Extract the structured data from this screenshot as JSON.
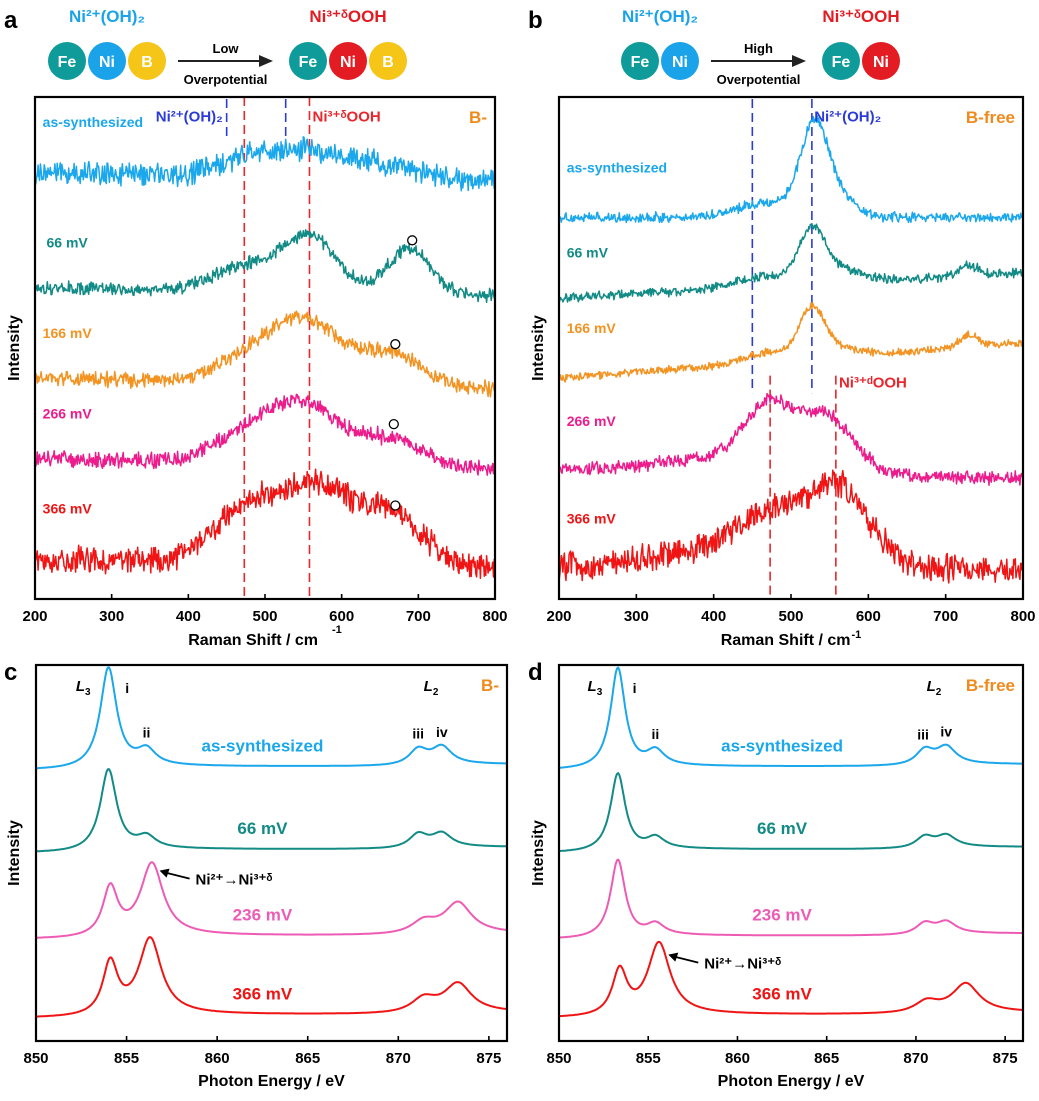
{
  "figure": {
    "panels": [
      "a",
      "b",
      "c",
      "d"
    ]
  },
  "colors": {
    "fe": "#0F9B9A",
    "ni2": "#1AA3E8",
    "ni3": "#E31B23",
    "b": "#F5C518",
    "as_synthesized": "#1AA7EC",
    "mv66": "#128A85",
    "mv166": "#F39322",
    "mv266": "#EC1C8C",
    "mv236": "#EE5BB5",
    "mv366": "#F01414",
    "blue_dash": "#2B3BD8",
    "red_dash": "#E8262B",
    "orange_label": "#F08A1C",
    "axis": "#000000"
  },
  "schemes": [
    {
      "panel": "a",
      "left_label": "Ni²⁺(OH)₂",
      "right_label": "Ni³⁺ᵟOOH",
      "arrow_top": "Low",
      "arrow_bottom": "Overpotential",
      "left_atoms": [
        "Fe",
        "Ni",
        "B"
      ],
      "right_atoms": [
        "Fe",
        "Ni",
        "B"
      ],
      "left_atom_colors": [
        "fe",
        "ni2",
        "b"
      ],
      "right_atom_colors": [
        "fe",
        "ni3",
        "b"
      ]
    },
    {
      "panel": "b",
      "left_label": "Ni²⁺(OH)₂",
      "right_label": "Ni³⁺ᵟOOH",
      "arrow_top": "High",
      "arrow_bottom": "Overpotential",
      "left_atoms": [
        "Fe",
        "Ni"
      ],
      "right_atoms": [
        "Fe",
        "Ni"
      ],
      "left_atom_colors": [
        "fe",
        "ni2"
      ],
      "right_atom_colors": [
        "fe",
        "ni3"
      ]
    }
  ],
  "chart_data": [
    {
      "panel": "a",
      "type": "line",
      "title": "",
      "sample_label": "B-",
      "xlabel": "Raman Shift / cm",
      "xlabel_sup": "-1",
      "ylabel": "Intensity",
      "xlim": [
        200,
        800
      ],
      "xticks": [
        200,
        300,
        400,
        500,
        600,
        700,
        800
      ],
      "yticks": [],
      "grid": false,
      "legend": "inline labels at left of each trace",
      "reference_lines": [
        {
          "x": 450,
          "color": "blue_dash",
          "span": "top",
          "label": ""
        },
        {
          "x": 527,
          "color": "blue_dash",
          "span": "top",
          "label": ""
        },
        {
          "x": 473,
          "color": "red_dash",
          "span": "full",
          "label": ""
        },
        {
          "x": 558,
          "color": "red_dash",
          "span": "full",
          "label": ""
        }
      ],
      "annotations": [
        {
          "text": "Ni²⁺(OH)₂",
          "color": "blue_dash",
          "x": 445,
          "anchor": "end",
          "y_level": 0.955
        },
        {
          "text": "Ni³⁺ᵟOOH",
          "color": "red_dash",
          "x": 562,
          "anchor": "start",
          "y_level": 0.955
        }
      ],
      "markers": [
        {
          "series": "66 mV",
          "x": 692,
          "symbol": "open-circle"
        },
        {
          "series": "166 mV",
          "x": 670,
          "symbol": "open-circle"
        },
        {
          "series": "266 mV",
          "x": 668,
          "symbol": "open-circle"
        },
        {
          "series": "366 mV",
          "x": 670,
          "symbol": "open-circle"
        }
      ],
      "series": [
        {
          "name": "as-synthesized",
          "color": "as_synthesized",
          "baseline": 0.85,
          "noise": 0.018,
          "slope": -0.02,
          "peaks": [
            [
              480,
              40,
              0.035
            ],
            [
              555,
              45,
              0.04
            ],
            [
              640,
              60,
              0.03
            ]
          ],
          "label_x": 210,
          "label_dy": 0.06
        },
        {
          "name": "66 mV",
          "color": "mv66",
          "baseline": 0.62,
          "noise": 0.01,
          "slope": -0.015,
          "peaks": [
            [
              473,
              40,
              0.05
            ],
            [
              558,
              35,
              0.11
            ],
            [
              688,
              28,
              0.09
            ]
          ],
          "label_x": 215,
          "label_dy": 0.05
        },
        {
          "name": "166 mV",
          "color": "mv166",
          "baseline": 0.44,
          "noise": 0.012,
          "slope": -0.02,
          "peaks": [
            [
              480,
              45,
              0.04
            ],
            [
              556,
              50,
              0.12
            ],
            [
              670,
              35,
              0.06
            ]
          ],
          "label_x": 210,
          "label_dy": 0.05
        },
        {
          "name": "266 mV",
          "color": "mv266",
          "baseline": 0.28,
          "noise": 0.013,
          "slope": -0.02,
          "peaks": [
            [
              480,
              45,
              0.05
            ],
            [
              556,
              50,
              0.11
            ],
            [
              670,
              35,
              0.05
            ]
          ],
          "label_x": 210,
          "label_dy": 0.05
        },
        {
          "name": "366 mV",
          "color": "mv366",
          "baseline": 0.08,
          "noise": 0.02,
          "slope": -0.02,
          "peaks": [
            [
              470,
              40,
              0.1
            ],
            [
              560,
              45,
              0.15
            ],
            [
              660,
              45,
              0.1
            ]
          ],
          "label_x": 210,
          "label_dy": 0.06
        }
      ]
    },
    {
      "panel": "b",
      "type": "line",
      "title": "",
      "sample_label": "B-free",
      "xlabel": "Raman Shift / cm",
      "xlabel_sup": "-1",
      "ylabel": "Intensity",
      "xlim": [
        200,
        800
      ],
      "xticks": [
        200,
        300,
        400,
        500,
        600,
        700,
        800
      ],
      "yticks": [],
      "grid": false,
      "legend": "inline labels at left of each trace",
      "reference_lines": [
        {
          "x": 450,
          "color": "blue_dash",
          "span": "upper",
          "label": ""
        },
        {
          "x": 527,
          "color": "blue_dash",
          "span": "upper",
          "label": ""
        },
        {
          "x": 473,
          "color": "red_dash",
          "span": "lower",
          "label": ""
        },
        {
          "x": 558,
          "color": "red_dash",
          "span": "lower",
          "label": ""
        }
      ],
      "annotations": [
        {
          "text": "Ni²⁺(OH)₂",
          "color": "blue_dash",
          "x": 530,
          "anchor": "start",
          "y_level": 0.955
        },
        {
          "text": "Ni³⁺ᵈOOH",
          "color": "red_dash",
          "x": 562,
          "anchor": "start",
          "y_level": 0.425
        }
      ],
      "markers": [],
      "series": [
        {
          "name": "as-synthesized",
          "color": "as_synthesized",
          "baseline": 0.76,
          "noise": 0.008,
          "slope": 0.0,
          "peaks": [
            [
              470,
              40,
              0.03
            ],
            [
              530,
              18,
              0.16
            ],
            [
              555,
              25,
              0.04
            ]
          ],
          "label_x": 210,
          "label_dy": 0.06
        },
        {
          "name": "66 mV",
          "color": "mv66",
          "baseline": 0.6,
          "noise": 0.007,
          "slope": 0.05,
          "peaks": [
            [
              470,
              40,
              0.02
            ],
            [
              527,
              16,
              0.09
            ],
            [
              555,
              30,
              0.03
            ],
            [
              730,
              12,
              0.02
            ]
          ],
          "label_x": 210,
          "label_dy": 0.05
        },
        {
          "name": "166 mV",
          "color": "mv166",
          "baseline": 0.44,
          "noise": 0.006,
          "slope": 0.07,
          "peaks": [
            [
              470,
              30,
              0.02
            ],
            [
              527,
              16,
              0.09
            ],
            [
              555,
              30,
              0.02
            ],
            [
              730,
              12,
              0.025
            ]
          ],
          "label_x": 210,
          "label_dy": 0.06
        },
        {
          "name": "266 mV",
          "color": "mv266",
          "baseline": 0.26,
          "noise": 0.01,
          "slope": -0.02,
          "peaks": [
            [
              470,
              30,
              0.11
            ],
            [
              545,
              35,
              0.11
            ],
            [
              420,
              80,
              0.03
            ]
          ],
          "label_x": 210,
          "label_dy": 0.055
        },
        {
          "name": "366 mV",
          "color": "mv366",
          "baseline": 0.06,
          "noise": 0.022,
          "slope": 0.0,
          "peaks": [
            [
              470,
              40,
              0.07
            ],
            [
              560,
              40,
              0.15
            ],
            [
              420,
              100,
              0.04
            ]
          ],
          "label_x": 210,
          "label_dy": 0.06
        }
      ]
    },
    {
      "panel": "c",
      "type": "line",
      "title": "",
      "sample_label": "B-",
      "xlabel": "Photon Energy / eV",
      "ylabel": "Intensity",
      "xlim": [
        850,
        876
      ],
      "xticks": [
        850,
        855,
        860,
        865,
        870,
        875
      ],
      "yticks": [],
      "grid": false,
      "legend": "inline labels at center of each trace",
      "edge_labels": [
        {
          "text": "L",
          "sub": "3",
          "x": 852.2
        },
        {
          "text": "L",
          "sub": "2",
          "x": 871.4
        }
      ],
      "peak_labels": [
        {
          "text": "i",
          "x": 854.7,
          "series": "as-synthesized",
          "dy": 0.0
        },
        {
          "text": "ii",
          "x": 856.1,
          "series": "as-synthesized",
          "dy": 0.0
        },
        {
          "text": "iii",
          "x": 871.1,
          "series": "as-synthesized",
          "dy": 0.0
        },
        {
          "text": "iv",
          "x": 872.4,
          "series": "as-synthesized",
          "dy": 0.0
        }
      ],
      "arrow_annotation": {
        "text": "Ni²⁺→Ni³⁺ᵟ",
        "series": "236 mV",
        "x": 856.6
      },
      "series": [
        {
          "name": "as-synthesized",
          "color": "as_synthesized",
          "baseline": 0.72,
          "label_x": 862.5,
          "peaks": [
            [
              854.0,
              0.55,
              0.27
            ],
            [
              856.1,
              0.6,
              0.04
            ],
            [
              871.1,
              0.6,
              0.04
            ],
            [
              872.4,
              0.65,
              0.045
            ]
          ],
          "edge": 0.01
        },
        {
          "name": "66 mV",
          "color": "mv66",
          "baseline": 0.5,
          "label_x": 862.5,
          "peaks": [
            [
              854.0,
              0.55,
              0.22
            ],
            [
              856.1,
              0.6,
              0.03
            ],
            [
              871.1,
              0.6,
              0.035
            ],
            [
              872.4,
              0.65,
              0.035
            ]
          ],
          "edge": 0.01
        },
        {
          "name": "236 mV",
          "color": "mv236",
          "baseline": 0.27,
          "label_x": 862.5,
          "peaks": [
            [
              854.1,
              0.5,
              0.13
            ],
            [
              856.4,
              0.75,
              0.19
            ],
            [
              871.4,
              0.8,
              0.03
            ],
            [
              873.3,
              0.9,
              0.08
            ]
          ],
          "edge": 0.01
        },
        {
          "name": "366 mV",
          "color": "mv366",
          "baseline": 0.06,
          "label_x": 862.5,
          "peaks": [
            [
              854.1,
              0.5,
              0.14
            ],
            [
              856.3,
              0.75,
              0.2
            ],
            [
              871.4,
              0.8,
              0.035
            ],
            [
              873.3,
              0.9,
              0.075
            ]
          ],
          "edge": 0.01
        }
      ]
    },
    {
      "panel": "d",
      "type": "line",
      "title": "",
      "sample_label": "B-free",
      "xlabel": "Photon Energy / eV",
      "ylabel": "Intensity",
      "xlim": [
        850,
        876
      ],
      "xticks": [
        850,
        855,
        860,
        865,
        870,
        875
      ],
      "yticks": [],
      "grid": false,
      "legend": "inline labels at center of each trace",
      "edge_labels": [
        {
          "text": "L",
          "sub": "3",
          "x": 851.6
        },
        {
          "text": "L",
          "sub": "2",
          "x": 870.6
        }
      ],
      "peak_labels": [
        {
          "text": "i",
          "x": 853.9,
          "series": "as-synthesized",
          "dy": 0.0
        },
        {
          "text": "ii",
          "x": 855.4,
          "series": "as-synthesized",
          "dy": 0.0
        },
        {
          "text": "iii",
          "x": 870.4,
          "series": "as-synthesized",
          "dy": 0.0
        },
        {
          "text": "iv",
          "x": 871.7,
          "series": "as-synthesized",
          "dy": 0.0
        }
      ],
      "arrow_annotation": {
        "text": "Ni²⁺→Ni³⁺ᵟ",
        "series": "366 mV",
        "x": 855.9
      },
      "series": [
        {
          "name": "as-synthesized",
          "color": "as_synthesized",
          "baseline": 0.72,
          "label_x": 862.5,
          "peaks": [
            [
              853.3,
              0.5,
              0.27
            ],
            [
              855.4,
              0.6,
              0.04
            ],
            [
              870.5,
              0.6,
              0.04
            ],
            [
              871.7,
              0.65,
              0.045
            ]
          ],
          "edge": 0.01
        },
        {
          "name": "66 mV",
          "color": "mv66",
          "baseline": 0.5,
          "label_x": 862.5,
          "peaks": [
            [
              853.3,
              0.5,
              0.21
            ],
            [
              855.4,
              0.6,
              0.03
            ],
            [
              870.5,
              0.6,
              0.03
            ],
            [
              871.7,
              0.65,
              0.03
            ]
          ],
          "edge": 0.01
        },
        {
          "name": "236 mV",
          "color": "mv236",
          "baseline": 0.27,
          "label_x": 862.5,
          "peaks": [
            [
              853.3,
              0.5,
              0.21
            ],
            [
              855.4,
              0.6,
              0.03
            ],
            [
              870.5,
              0.6,
              0.03
            ],
            [
              871.7,
              0.65,
              0.03
            ]
          ],
          "edge": 0.01
        },
        {
          "name": "366 mV",
          "color": "mv366",
          "baseline": 0.06,
          "label_x": 862.5,
          "peaks": [
            [
              853.4,
              0.5,
              0.12
            ],
            [
              855.6,
              0.75,
              0.19
            ],
            [
              870.6,
              0.8,
              0.03
            ],
            [
              872.8,
              0.9,
              0.075
            ]
          ],
          "edge": 0.01
        }
      ]
    }
  ]
}
